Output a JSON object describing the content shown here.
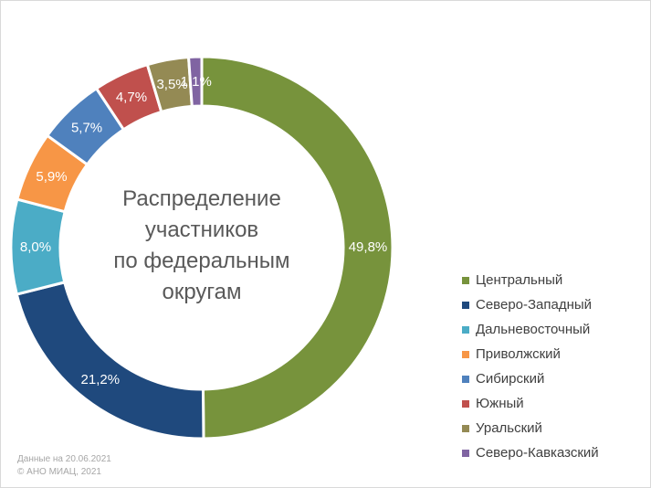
{
  "chart_data": {
    "type": "pie",
    "title": "",
    "center_text": [
      "Распределение",
      "участников",
      "по федеральным",
      "округам"
    ],
    "categories": [
      "Центральный",
      "Северо-Западный",
      "Дальневосточный",
      "Приволжский",
      "Сибирский",
      "Южный",
      "Уральский",
      "Северо-Кавказский"
    ],
    "values": [
      49.8,
      21.2,
      8.0,
      5.9,
      5.7,
      4.7,
      3.5,
      1.1
    ],
    "value_labels": [
      "49,8%",
      "21,2%",
      "8,0%",
      "5,9%",
      "5,7%",
      "4,7%",
      "3,5%",
      "1,1%"
    ],
    "colors": [
      "#77933c",
      "#1f497d",
      "#4bacc6",
      "#f79646",
      "#4f81bd",
      "#c0504d",
      "#948a54",
      "#8064a2"
    ],
    "legend_position": "right",
    "donut": true
  },
  "footer": {
    "date_note": "Данные на 20.06.2021",
    "copyright": "© АНО МИАЦ, 2021"
  }
}
